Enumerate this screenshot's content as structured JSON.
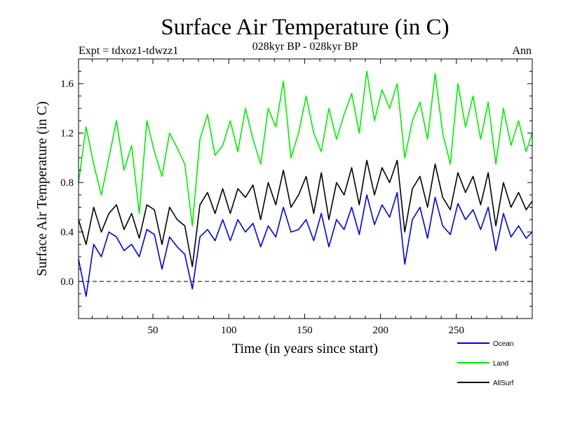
{
  "chart_data": {
    "type": "line",
    "title": "Surface Air Temperature (in C)",
    "subtitle": "028kyr BP - 028kyr BP",
    "expt_label": "Expt = tdxoz1-tdwzz1",
    "season_label": "Ann",
    "xlabel": "Time (in years since start)",
    "ylabel": "Surface Air Temperature (in C)",
    "xlim": [
      1,
      300
    ],
    "ylim": [
      -0.3,
      1.8
    ],
    "x_ticks": [
      50,
      100,
      150,
      200,
      250
    ],
    "x_tick_labels": [
      "50",
      "100",
      "150",
      "200",
      "250"
    ],
    "y_ticks": [
      0.0,
      0.4,
      0.8,
      1.2,
      1.6
    ],
    "y_tick_labels": [
      "0.0",
      "0.4",
      "0.8",
      "1.2",
      "1.6"
    ],
    "zero_line": true,
    "x": [
      1,
      6,
      11,
      16,
      21,
      26,
      31,
      36,
      41,
      46,
      51,
      56,
      61,
      66,
      71,
      76,
      81,
      86,
      91,
      96,
      101,
      106,
      111,
      116,
      121,
      126,
      131,
      136,
      141,
      146,
      151,
      156,
      161,
      166,
      171,
      176,
      181,
      186,
      191,
      196,
      201,
      206,
      211,
      216,
      221,
      226,
      231,
      236,
      241,
      246,
      251,
      256,
      261,
      266,
      271,
      276,
      281,
      286,
      291,
      296,
      300
    ],
    "series": [
      {
        "name": "Ocean",
        "color": "#0000dd",
        "values": [
          0.18,
          -0.12,
          0.3,
          0.2,
          0.4,
          0.36,
          0.25,
          0.3,
          0.2,
          0.42,
          0.38,
          0.1,
          0.36,
          0.28,
          0.22,
          -0.06,
          0.36,
          0.42,
          0.33,
          0.5,
          0.33,
          0.5,
          0.4,
          0.47,
          0.28,
          0.45,
          0.36,
          0.6,
          0.4,
          0.42,
          0.5,
          0.33,
          0.55,
          0.28,
          0.5,
          0.42,
          0.6,
          0.38,
          0.7,
          0.46,
          0.62,
          0.52,
          0.72,
          0.14,
          0.5,
          0.6,
          0.35,
          0.68,
          0.45,
          0.38,
          0.63,
          0.5,
          0.58,
          0.42,
          0.6,
          0.25,
          0.55,
          0.36,
          0.45,
          0.35,
          0.4
        ]
      },
      {
        "name": "Land",
        "color": "#00ee00",
        "values": [
          0.8,
          1.25,
          0.95,
          0.7,
          1.0,
          1.3,
          0.9,
          1.1,
          0.55,
          1.3,
          1.05,
          0.85,
          1.2,
          1.08,
          0.95,
          0.45,
          1.15,
          1.35,
          1.02,
          1.1,
          1.3,
          1.05,
          1.4,
          1.15,
          0.95,
          1.4,
          1.25,
          1.62,
          1.0,
          1.2,
          1.5,
          1.2,
          1.05,
          1.4,
          1.15,
          1.35,
          1.52,
          1.2,
          1.7,
          1.3,
          1.55,
          1.4,
          1.6,
          1.0,
          1.3,
          1.45,
          1.15,
          1.68,
          1.2,
          0.95,
          1.6,
          1.25,
          1.5,
          1.15,
          1.45,
          0.95,
          1.4,
          1.1,
          1.3,
          1.05,
          1.2
        ]
      },
      {
        "name": "AllSurf",
        "color": "#000000",
        "values": [
          0.5,
          0.3,
          0.6,
          0.4,
          0.55,
          0.62,
          0.42,
          0.55,
          0.35,
          0.62,
          0.58,
          0.3,
          0.6,
          0.5,
          0.45,
          0.12,
          0.62,
          0.72,
          0.55,
          0.75,
          0.55,
          0.75,
          0.68,
          0.78,
          0.5,
          0.8,
          0.62,
          0.9,
          0.6,
          0.7,
          0.85,
          0.55,
          0.88,
          0.5,
          0.8,
          0.7,
          0.92,
          0.62,
          0.98,
          0.7,
          0.92,
          0.8,
          0.98,
          0.4,
          0.75,
          0.85,
          0.6,
          0.95,
          0.68,
          0.58,
          0.88,
          0.72,
          0.85,
          0.62,
          0.88,
          0.45,
          0.8,
          0.6,
          0.72,
          0.58,
          0.65
        ]
      }
    ],
    "legend_position": "bottom-right"
  }
}
